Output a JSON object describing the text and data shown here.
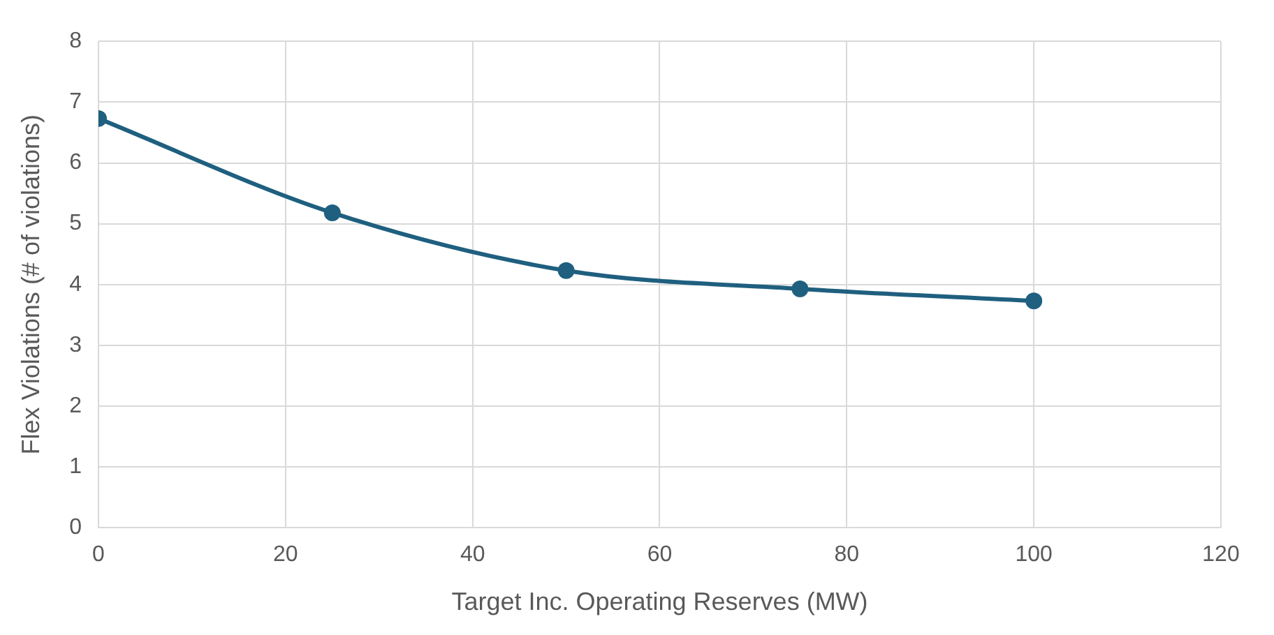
{
  "chart_data": {
    "type": "line",
    "xlabel": "Target Inc. Operating Reserves (MW)",
    "ylabel": "Flex Violations (# of violations)",
    "x": [
      0,
      25,
      50,
      75,
      100
    ],
    "series": [
      {
        "color": "#1f5f7f",
        "values": [
          6.73,
          5.18,
          4.23,
          3.93,
          3.73
        ]
      }
    ],
    "xlim": [
      0,
      120
    ],
    "xticks": [
      0,
      20,
      40,
      60,
      80,
      100,
      120
    ],
    "ylim": [
      0,
      8
    ],
    "yticks": [
      0,
      1,
      2,
      3,
      4,
      5,
      6,
      7,
      8
    ],
    "grid": true,
    "legend": false,
    "marker": "circle",
    "line_style": "solid"
  }
}
